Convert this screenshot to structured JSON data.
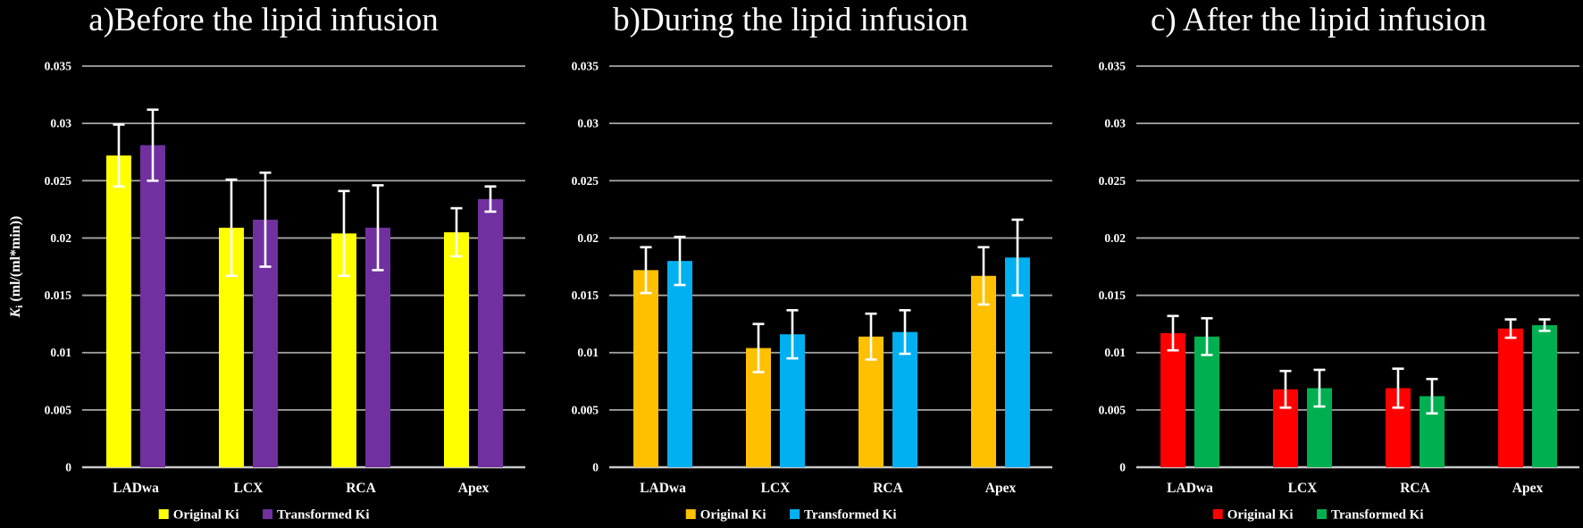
{
  "figure": {
    "background": "#000000",
    "text_color": "#FFFFFF",
    "gridline_color": "#A6A6A6",
    "axis_line_color": "#C8C8C8",
    "error_bar_color": "#FFFFFF"
  },
  "chart_data": {
    "type": "bar",
    "categories": [
      "LADwa",
      "LCX",
      "RCA",
      "Apex"
    ],
    "y_axis": {
      "label": "Ki (ml/(ml*min))",
      "label_main": "K",
      "label_sub": "i",
      "label_units": " (ml/(ml*min))",
      "min": 0,
      "max": 0.035,
      "tick_step": 0.005,
      "tick_labels": [
        "0.035",
        "0.03",
        "0.025",
        "0.02",
        "0.015",
        "0.01",
        "0.005",
        "0"
      ],
      "grid": true
    },
    "legend_position": "bottom",
    "error_bars": true,
    "charts": [
      {
        "panel": "a",
        "title": "a)Before the lipid infusion",
        "show_y_axis_label": true,
        "series": [
          {
            "name": "Original Ki",
            "color": "#FFFF00",
            "values": [
              0.0272,
              0.0209,
              0.0204,
              0.0205
            ],
            "errors": [
              0.0027,
              0.0042,
              0.0037,
              0.0021
            ]
          },
          {
            "name": "Transformed Ki",
            "color": "#7030A0",
            "values": [
              0.0281,
              0.0216,
              0.0209,
              0.0234
            ],
            "errors": [
              0.0031,
              0.0041,
              0.0037,
              0.0011
            ]
          }
        ]
      },
      {
        "panel": "b",
        "title": "b)During the lipid infusion",
        "show_y_axis_label": false,
        "series": [
          {
            "name": "Original Ki",
            "color": "#FFC000",
            "values": [
              0.0172,
              0.0104,
              0.0114,
              0.0167
            ],
            "errors": [
              0.002,
              0.0021,
              0.002,
              0.0025
            ]
          },
          {
            "name": "Transformed Ki",
            "color": "#00B0F0",
            "values": [
              0.018,
              0.0116,
              0.0118,
              0.0183
            ],
            "errors": [
              0.0021,
              0.0021,
              0.0019,
              0.0033
            ]
          }
        ]
      },
      {
        "panel": "c",
        "title": "c) After the lipid infusion",
        "show_y_axis_label": false,
        "series": [
          {
            "name": "Original Ki",
            "color": "#FF0000",
            "values": [
              0.0117,
              0.0068,
              0.0069,
              0.0121
            ],
            "errors": [
              0.0015,
              0.0016,
              0.0017,
              0.0008
            ]
          },
          {
            "name": "Transformed Ki",
            "color": "#00B050",
            "values": [
              0.0114,
              0.0069,
              0.0062,
              0.0124
            ],
            "errors": [
              0.0016,
              0.0016,
              0.0015,
              0.0005
            ]
          }
        ]
      }
    ]
  }
}
